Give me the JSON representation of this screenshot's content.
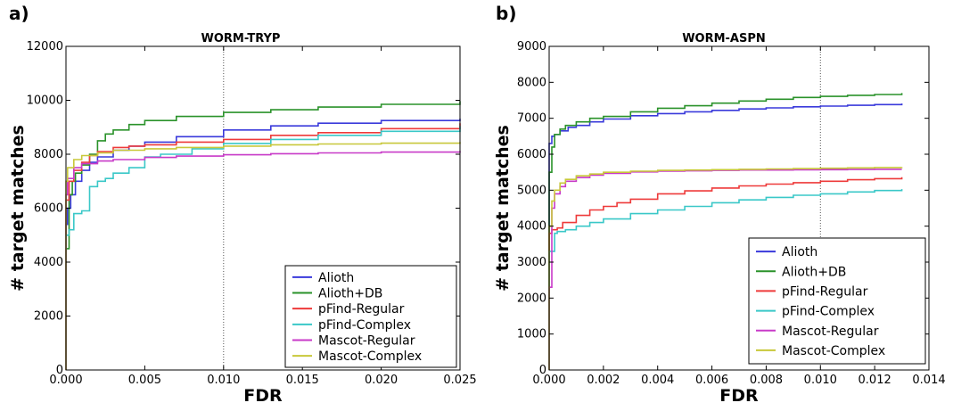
{
  "chart_data": [
    {
      "panel": "a)",
      "type": "line",
      "title": "WORM-TRYP",
      "xlabel": "FDR",
      "ylabel": "# target matches",
      "xlim": [
        0,
        0.025
      ],
      "ylim": [
        0,
        12000
      ],
      "xticks": [
        "0.000",
        "0.005",
        "0.010",
        "0.015",
        "0.020",
        "0.025"
      ],
      "xtick_values": [
        0,
        0.005,
        0.01,
        0.015,
        0.02,
        0.025
      ],
      "yticks": [
        "0",
        "2000",
        "4000",
        "6000",
        "8000",
        "10000",
        "12000"
      ],
      "ytick_values": [
        0,
        2000,
        4000,
        6000,
        8000,
        10000,
        12000
      ],
      "reference_line_x": 0.01,
      "legend_position": "lower-right",
      "series": [
        {
          "name": "Alioth",
          "color": "#3a3adb",
          "x": [
            0,
            0.0001,
            0.0003,
            0.0006,
            0.001,
            0.0015,
            0.002,
            0.003,
            0.004,
            0.005,
            0.007,
            0.01,
            0.013,
            0.016,
            0.02,
            0.025
          ],
          "y": [
            5400,
            6000,
            6500,
            7000,
            7400,
            7700,
            7900,
            8150,
            8300,
            8450,
            8650,
            8900,
            9050,
            9150,
            9250,
            9320
          ]
        },
        {
          "name": "Alioth+DB",
          "color": "#2a922a",
          "x": [
            0,
            0.0002,
            0.0004,
            0.0006,
            0.001,
            0.0015,
            0.002,
            0.0025,
            0.003,
            0.004,
            0.005,
            0.007,
            0.01,
            0.013,
            0.016,
            0.02,
            0.025
          ],
          "y": [
            4500,
            6500,
            7000,
            7300,
            7600,
            8000,
            8500,
            8750,
            8900,
            9100,
            9250,
            9400,
            9550,
            9650,
            9750,
            9850,
            9970
          ]
        },
        {
          "name": "pFind-Regular",
          "color": "#ee3a3a",
          "x": [
            0,
            0.0002,
            0.0005,
            0.001,
            0.0015,
            0.002,
            0.003,
            0.004,
            0.005,
            0.007,
            0.01,
            0.013,
            0.016,
            0.02,
            0.025
          ],
          "y": [
            6300,
            7000,
            7400,
            7700,
            7950,
            8100,
            8250,
            8300,
            8350,
            8450,
            8550,
            8700,
            8800,
            8950,
            9150
          ]
        },
        {
          "name": "pFind-Complex",
          "color": "#3ac8c8",
          "x": [
            0,
            0.0002,
            0.0005,
            0.001,
            0.0015,
            0.002,
            0.0025,
            0.003,
            0.004,
            0.005,
            0.006,
            0.008,
            0.01,
            0.013,
            0.016,
            0.02,
            0.025
          ],
          "y": [
            5000,
            5200,
            5800,
            5900,
            6800,
            7000,
            7100,
            7300,
            7500,
            7900,
            8000,
            8200,
            8400,
            8550,
            8700,
            8850,
            9050
          ]
        },
        {
          "name": "Mascot-Regular",
          "color": "#c83ac8",
          "x": [
            0,
            0.0001,
            0.0005,
            0.001,
            0.002,
            0.003,
            0.005,
            0.007,
            0.01,
            0.013,
            0.016,
            0.02,
            0.025
          ],
          "y": [
            6500,
            7100,
            7500,
            7650,
            7750,
            7800,
            7880,
            7930,
            7980,
            8020,
            8050,
            8080,
            8120
          ]
        },
        {
          "name": "Mascot-Complex",
          "color": "#c8c83a",
          "x": [
            0,
            0.0001,
            0.0005,
            0.001,
            0.002,
            0.003,
            0.005,
            0.007,
            0.01,
            0.013,
            0.016,
            0.02,
            0.025
          ],
          "y": [
            7000,
            7500,
            7800,
            7950,
            8050,
            8150,
            8200,
            8250,
            8300,
            8350,
            8380,
            8410,
            8450
          ]
        }
      ]
    },
    {
      "panel": "b)",
      "type": "line",
      "title": "WORM-ASPN",
      "xlabel": "FDR",
      "ylabel": "# target matches",
      "xlim": [
        0,
        0.014
      ],
      "ylim": [
        0,
        9000
      ],
      "xticks": [
        "0.000",
        "0.002",
        "0.004",
        "0.006",
        "0.008",
        "0.010",
        "0.012",
        "0.014"
      ],
      "xtick_values": [
        0,
        0.002,
        0.004,
        0.006,
        0.008,
        0.01,
        0.012,
        0.014
      ],
      "yticks": [
        "0",
        "1000",
        "2000",
        "3000",
        "4000",
        "5000",
        "6000",
        "7000",
        "8000",
        "9000"
      ],
      "ytick_values": [
        0,
        1000,
        2000,
        3000,
        4000,
        5000,
        6000,
        7000,
        8000,
        9000
      ],
      "reference_line_x": 0.01,
      "legend_position": "lower-right",
      "series": [
        {
          "name": "Alioth",
          "color": "#3a3adb",
          "x": [
            0,
            0.0001,
            0.0002,
            0.0004,
            0.0007,
            0.001,
            0.0015,
            0.002,
            0.003,
            0.004,
            0.005,
            0.006,
            0.007,
            0.008,
            0.009,
            0.01,
            0.011,
            0.012,
            0.013
          ],
          "y": [
            6300,
            6500,
            6550,
            6650,
            6750,
            6800,
            6900,
            6980,
            7070,
            7130,
            7180,
            7220,
            7260,
            7290,
            7320,
            7340,
            7360,
            7380,
            7410
          ]
        },
        {
          "name": "Alioth+DB",
          "color": "#2a922a",
          "x": [
            0,
            0.0001,
            0.0002,
            0.0004,
            0.0006,
            0.001,
            0.0015,
            0.002,
            0.003,
            0.004,
            0.005,
            0.006,
            0.007,
            0.008,
            0.009,
            0.01,
            0.011,
            0.012,
            0.013
          ],
          "y": [
            5500,
            6200,
            6550,
            6700,
            6800,
            6900,
            7000,
            7050,
            7180,
            7280,
            7350,
            7420,
            7480,
            7530,
            7580,
            7610,
            7640,
            7660,
            7700
          ]
        },
        {
          "name": "pFind-Regular",
          "color": "#ee3a3a",
          "x": [
            0,
            0.0001,
            0.0003,
            0.0005,
            0.001,
            0.0015,
            0.002,
            0.0025,
            0.003,
            0.004,
            0.005,
            0.006,
            0.007,
            0.008,
            0.009,
            0.01,
            0.011,
            0.012,
            0.013
          ],
          "y": [
            3800,
            3900,
            3950,
            4100,
            4300,
            4450,
            4550,
            4650,
            4750,
            4900,
            4980,
            5060,
            5120,
            5170,
            5210,
            5250,
            5290,
            5320,
            5360
          ]
        },
        {
          "name": "pFind-Complex",
          "color": "#3ac8c8",
          "x": [
            0,
            0.0001,
            0.0002,
            0.0003,
            0.0006,
            0.001,
            0.0015,
            0.002,
            0.003,
            0.004,
            0.005,
            0.006,
            0.007,
            0.008,
            0.009,
            0.01,
            0.011,
            0.012,
            0.013
          ],
          "y": [
            3300,
            3300,
            3800,
            3850,
            3900,
            4000,
            4100,
            4200,
            4350,
            4450,
            4550,
            4650,
            4730,
            4800,
            4860,
            4900,
            4950,
            4990,
            5030
          ]
        },
        {
          "name": "Mascot-Regular",
          "color": "#c83ac8",
          "x": [
            0,
            0.0001,
            0.0002,
            0.0004,
            0.0006,
            0.001,
            0.0015,
            0.002,
            0.003,
            0.004,
            0.005,
            0.006,
            0.007,
            0.008,
            0.009,
            0.01,
            0.011,
            0.012,
            0.013
          ],
          "y": [
            2300,
            4500,
            4900,
            5100,
            5250,
            5350,
            5420,
            5470,
            5510,
            5530,
            5540,
            5550,
            5560,
            5560,
            5565,
            5570,
            5575,
            5580,
            5580
          ]
        },
        {
          "name": "Mascot-Complex",
          "color": "#c8c83a",
          "x": [
            0,
            0.0001,
            0.0002,
            0.0004,
            0.0006,
            0.001,
            0.0015,
            0.002,
            0.003,
            0.004,
            0.005,
            0.006,
            0.007,
            0.008,
            0.009,
            0.01,
            0.011,
            0.012,
            0.013
          ],
          "y": [
            4000,
            4700,
            5000,
            5200,
            5300,
            5400,
            5450,
            5500,
            5530,
            5550,
            5560,
            5570,
            5580,
            5590,
            5600,
            5610,
            5620,
            5630,
            5640
          ]
        }
      ]
    }
  ]
}
